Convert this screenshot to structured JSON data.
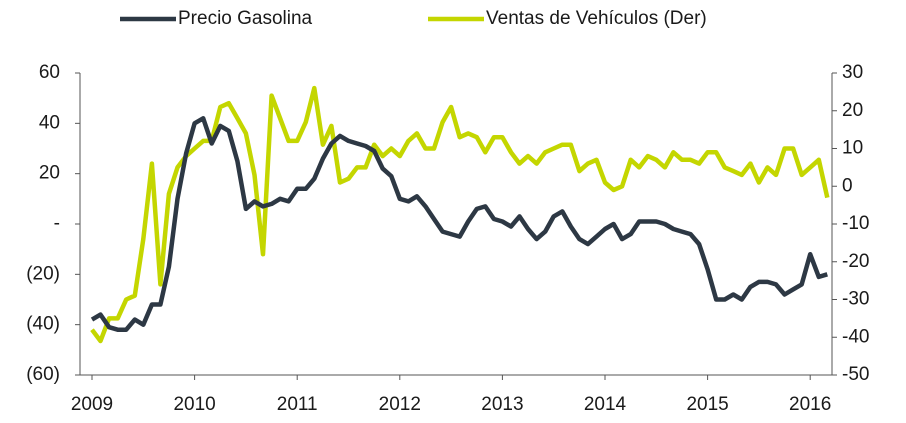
{
  "chart_data": {
    "type": "line",
    "categories": [
      "2009",
      null,
      null,
      null,
      null,
      null,
      null,
      null,
      null,
      null,
      null,
      null,
      "2010",
      null,
      null,
      null,
      null,
      null,
      null,
      null,
      null,
      null,
      null,
      null,
      "2011",
      null,
      null,
      null,
      null,
      null,
      null,
      null,
      null,
      null,
      null,
      null,
      "2012",
      null,
      null,
      null,
      null,
      null,
      null,
      null,
      null,
      null,
      null,
      null,
      "2013",
      null,
      null,
      null,
      null,
      null,
      null,
      null,
      null,
      null,
      null,
      null,
      "2014",
      null,
      null,
      null,
      null,
      null,
      null,
      null,
      null,
      null,
      null,
      null,
      "2015",
      null,
      null,
      null,
      null,
      null,
      null,
      null,
      null,
      null,
      null,
      null,
      "2016",
      null,
      null
    ],
    "series": [
      {
        "name": "Precio Gasolina",
        "color": "#2d3844",
        "axis": "y",
        "values": [
          -38,
          -36,
          -41,
          -42,
          -42,
          -38,
          -40,
          -32,
          -32,
          -17,
          10,
          28,
          40,
          42,
          32,
          39,
          37,
          25,
          6,
          9,
          7,
          8,
          10,
          9,
          14,
          14,
          18,
          26,
          32,
          35,
          33,
          32,
          31,
          29,
          22,
          19,
          10,
          9,
          11,
          7,
          2,
          -3,
          -4,
          -5,
          1,
          6,
          7,
          2,
          1,
          -1,
          3,
          -2,
          -6,
          -3,
          3,
          5,
          -1,
          -6,
          -8,
          -5,
          -2,
          0,
          -6,
          -4,
          1,
          1,
          1,
          0,
          -2,
          -3,
          -4,
          -8,
          -18,
          -30,
          -30,
          -28,
          -30,
          -25,
          -23,
          -23,
          -24,
          -28,
          -26,
          -24,
          -12,
          -21,
          -20
        ]
      },
      {
        "name": "Ventas de Vehículos (Der)",
        "color": "#c4d600",
        "axis": "y2",
        "values": [
          -38,
          -41,
          -35,
          -35,
          -30,
          -29,
          -14,
          6,
          -26,
          -2,
          5,
          8,
          10,
          12,
          12,
          21,
          22,
          18,
          14,
          3,
          -18,
          24,
          18,
          12,
          12,
          17,
          26,
          11,
          16,
          1,
          2,
          5,
          5,
          11,
          8,
          10,
          8,
          12,
          14,
          10,
          10,
          17,
          21,
          13,
          14,
          13,
          9,
          13,
          13,
          9,
          6,
          8,
          6,
          9,
          10,
          11,
          11,
          4,
          6,
          7,
          1,
          -1,
          0,
          7,
          5,
          8,
          7,
          5,
          9,
          7,
          7,
          6,
          9,
          9,
          5,
          4,
          3,
          6,
          1,
          5,
          3,
          10,
          10,
          3,
          5,
          7,
          -3
        ]
      }
    ],
    "ylim": [
      -60,
      60
    ],
    "yticks": [
      {
        "value": -60,
        "label": "(60)"
      },
      {
        "value": -40,
        "label": "(40)"
      },
      {
        "value": -20,
        "label": "(20)"
      },
      {
        "value": 0,
        "label": "-"
      },
      20,
      40,
      60
    ],
    "y2lim": [
      -50,
      30
    ],
    "y2ticks": [
      -50,
      -40,
      -30,
      -20,
      -10,
      0,
      10,
      20,
      30
    ],
    "legend": "top"
  }
}
